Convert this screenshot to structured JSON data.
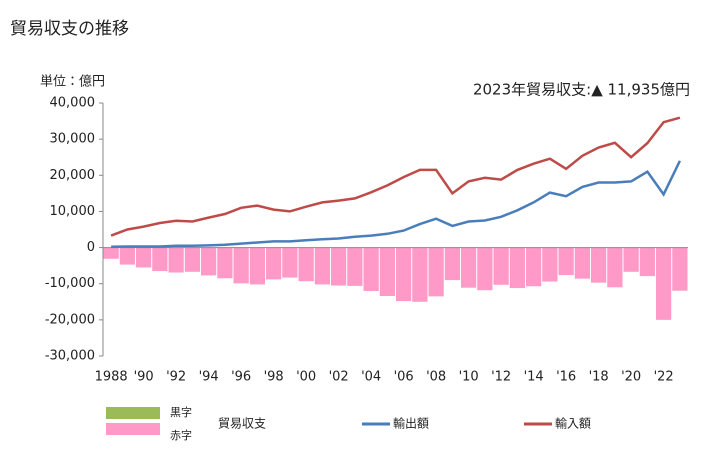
{
  "chart_data": {
    "type": "bar-line",
    "title": "貿易収支の推移",
    "unit_label": "単位：億円",
    "annotation": "2023年貿易収支:▲ 11,935億円",
    "categories": [
      "1988",
      null,
      "'90",
      null,
      "'92",
      null,
      "'94",
      null,
      "'96",
      null,
      "'98",
      null,
      "'00",
      null,
      "'02",
      null,
      "'04",
      null,
      "'06",
      null,
      "'08",
      null,
      "'10",
      null,
      "'12",
      null,
      "'14",
      null,
      "'16",
      null,
      "'18",
      null,
      "'20",
      null,
      "'22",
      null
    ],
    "ylim": [
      -30000,
      40000
    ],
    "yticks": [
      {
        "value": -30000,
        "label": "-30,000"
      },
      {
        "value": -20000,
        "label": "-20,000"
      },
      {
        "value": -10000,
        "label": "-10,000"
      },
      0,
      {
        "value": 10000,
        "label": "10,000"
      },
      {
        "value": 20000,
        "label": "20,000"
      },
      {
        "value": 30000,
        "label": "30,000"
      },
      {
        "value": 40000,
        "label": "40,000"
      }
    ],
    "grid": false,
    "series": [
      {
        "name": "貿易収支",
        "type": "bar",
        "positive_label": "黒字",
        "negative_label": "赤字",
        "positive_color": "#9bbb59",
        "negative_color": "#ff99c8",
        "values": [
          -3100,
          -4700,
          -5500,
          -6500,
          -6900,
          -6700,
          -7700,
          -8500,
          -9900,
          -10200,
          -8800,
          -8300,
          -9300,
          -10200,
          -10500,
          -10600,
          -12000,
          -13400,
          -14800,
          -15000,
          -13500,
          -9000,
          -11100,
          -11800,
          -10300,
          -11200,
          -10700,
          -9400,
          -7600,
          -8600,
          -9700,
          -11000,
          -6700,
          -7900,
          -20000,
          -11935
        ]
      },
      {
        "name": "輸出額",
        "type": "line",
        "color": "#4a7ebb",
        "values": [
          200,
          300,
          300,
          300,
          500,
          500,
          600,
          800,
          1100,
          1400,
          1700,
          1700,
          2000,
          2300,
          2500,
          3000,
          3300,
          3800,
          4700,
          6500,
          8000,
          6000,
          7200,
          7500,
          8500,
          10300,
          12500,
          15200,
          14200,
          16800,
          18000,
          18000,
          18300,
          21000,
          14700,
          24000
        ]
      },
      {
        "name": "輸入額",
        "type": "line",
        "color": "#be4b48",
        "values": [
          3300,
          5000,
          5800,
          6800,
          7400,
          7200,
          8300,
          9300,
          11000,
          11600,
          10500,
          10000,
          11300,
          12500,
          13000,
          13600,
          15300,
          17200,
          19500,
          21500,
          21500,
          15000,
          18300,
          19300,
          18800,
          21500,
          23200,
          24600,
          21800,
          25400,
          27700,
          29000,
          25000,
          28900,
          34700,
          35935
        ]
      }
    ]
  }
}
